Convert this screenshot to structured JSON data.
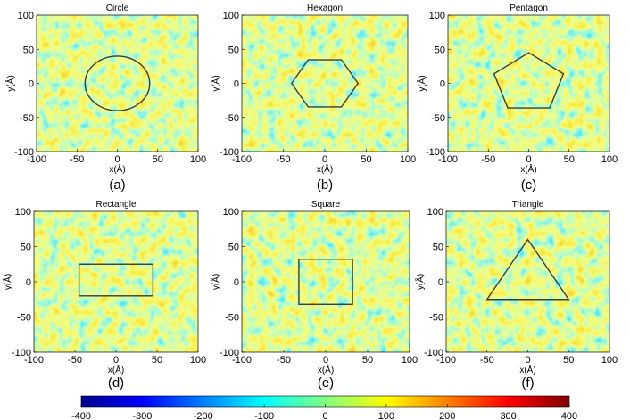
{
  "figure": {
    "panels": [
      {
        "title": "Circle",
        "label": "(a)",
        "shape": "circle"
      },
      {
        "title": "Hexagon",
        "label": "(b)",
        "shape": "hexagon"
      },
      {
        "title": "Pentagon",
        "label": "(c)",
        "shape": "pentagon"
      },
      {
        "title": "Rectangle",
        "label": "(d)",
        "shape": "rectangle"
      },
      {
        "title": "Square",
        "label": "(e)",
        "shape": "square"
      },
      {
        "title": "Triangle",
        "label": "(f)",
        "shape": "triangle"
      }
    ],
    "colorbar": {
      "ticks": [
        "-400",
        "-300",
        "-200",
        "-100",
        "0",
        "100",
        "200",
        "300",
        "400"
      ],
      "colors": [
        "#00008f",
        "#0000ff",
        "#0080ff",
        "#00ffff",
        "#80ff80",
        "#ffff00",
        "#ff8000",
        "#ff0000",
        "#800000"
      ]
    }
  },
  "chart_data": {
    "type": "heatmap",
    "layout": "2x3 grid",
    "xlabel": "x(Å)",
    "ylabel": "y(Å)",
    "xlim": [
      -100,
      100
    ],
    "ylim": [
      -100,
      100
    ],
    "xticks": [
      -100,
      -50,
      0,
      50,
      100
    ],
    "yticks": [
      -100,
      -50,
      0,
      50,
      100
    ],
    "xtick_labels": [
      "-100",
      "-50",
      "0",
      "50",
      "100"
    ],
    "ytick_labels": [
      "-100",
      "-50",
      "0",
      "50",
      "100"
    ],
    "color_range": [
      -400,
      400
    ],
    "shape_outlines": {
      "circle": {
        "center": [
          0,
          0
        ],
        "radius": 40
      },
      "hexagon": {
        "vertices": [
          [
            40,
            0
          ],
          [
            20,
            34.6
          ],
          [
            -20,
            34.6
          ],
          [
            -40,
            0
          ],
          [
            -20,
            -34.6
          ],
          [
            20,
            -34.6
          ]
        ]
      },
      "pentagon": {
        "vertices": [
          [
            0,
            45
          ],
          [
            -43,
            14
          ],
          [
            -26,
            -36
          ],
          [
            26,
            -36
          ],
          [
            43,
            14
          ]
        ]
      },
      "rectangle": {
        "x": [
          -45,
          45
        ],
        "y": [
          -20,
          25
        ]
      },
      "square": {
        "x": [
          -32,
          32
        ],
        "y": [
          -32,
          32
        ]
      },
      "triangle": {
        "vertices": [
          [
            0,
            60
          ],
          [
            -50,
            -25
          ],
          [
            50,
            -25
          ]
        ]
      }
    }
  }
}
